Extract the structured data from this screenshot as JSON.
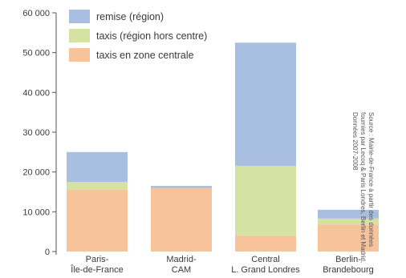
{
  "chart_data": {
    "type": "bar",
    "stacked": true,
    "categories": [
      [
        "Paris-",
        "Île-de-France"
      ],
      [
        "Madrid-",
        "CAM"
      ],
      [
        "Central",
        "L. Grand Londres"
      ],
      [
        "Berlin-",
        "Brandebourg"
      ]
    ],
    "series": [
      {
        "name": "taxis en zone centrale",
        "values": [
          15500,
          16000,
          4000,
          6800
        ],
        "color": "#f6c39b"
      },
      {
        "name": "taxis (région hors centre)",
        "values": [
          2000,
          0,
          17500,
          1500
        ],
        "color": "#d6e2a3"
      },
      {
        "name": "remise (région)",
        "values": [
          7500,
          500,
          31000,
          2200
        ],
        "color": "#a9bfe1"
      }
    ],
    "legend_order": [
      2,
      1,
      0
    ],
    "legend_position": "top-left",
    "ylim": [
      0,
      60000
    ],
    "yticks": [
      0,
      10000,
      20000,
      30000,
      40000,
      50000,
      60000
    ],
    "ytick_labels": [
      "0",
      "10 000",
      "20 000",
      "30 000",
      "40 000",
      "50 000",
      "60 000"
    ],
    "grid": false,
    "title": "",
    "xlabel": "",
    "ylabel": "",
    "source_lines": [
      "Source : Mairie-de-France à partir des données",
      "fournies par Lecoq & Paris Londres, Berlin et Madrid,",
      "Données 2007-2008"
    ]
  }
}
